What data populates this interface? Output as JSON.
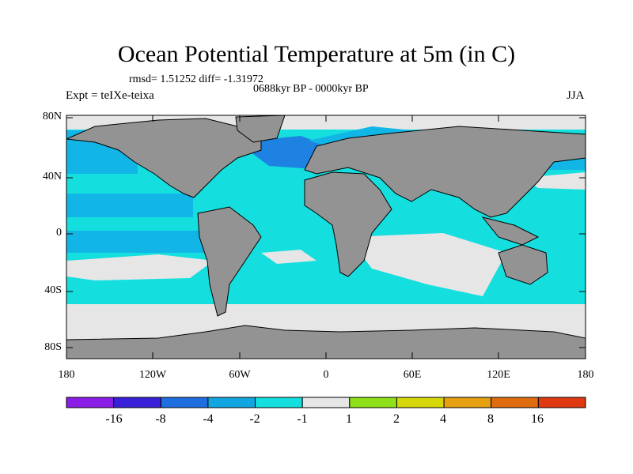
{
  "title": "Ocean Potential Temperature at 5m (in C)",
  "stats": "rmsd= 1.51252 diff= -1.31972",
  "period": "0688kyr BP - 0000kyr BP",
  "experiment": "Expt = teIXe-teixa",
  "season": "JJA",
  "lat_labels": [
    "80N",
    "40N",
    "0",
    "40S",
    "80S"
  ],
  "lon_labels": [
    "180",
    "120W",
    "60W",
    "0",
    "60E",
    "120E",
    "180"
  ],
  "colorbar": {
    "labels": [
      "-16",
      "-8",
      "-4",
      "-2",
      "-1",
      "1",
      "2",
      "4",
      "8",
      "16"
    ],
    "colors": [
      "#8a1ee6",
      "#3a20d8",
      "#1e6ee0",
      "#12a6e0",
      "#14dede",
      "#e6e6e6",
      "#8ee018",
      "#d6d80a",
      "#e6a010",
      "#e06c10",
      "#e03810"
    ]
  },
  "colors": {
    "land": "#939393",
    "ocean_main": "#14dede",
    "ocean_neg2": "#12b6e6",
    "ocean_neg4": "#1e82e2",
    "near_zero": "#e6e6e6"
  }
}
